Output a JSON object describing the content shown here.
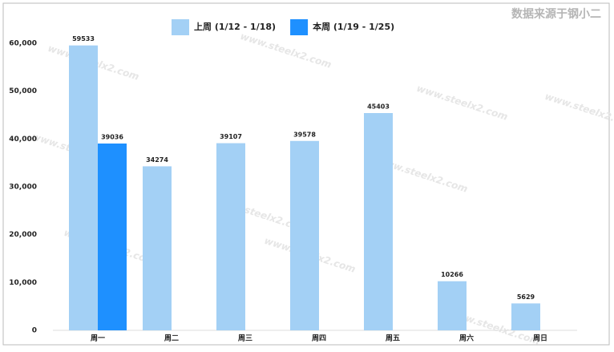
{
  "chart_data": {
    "type": "bar",
    "source": "数据来源于钢小二",
    "watermark": "www.steelx2.com",
    "categories": [
      "周一",
      "周二",
      "周三",
      "周四",
      "周五",
      "周六",
      "周日"
    ],
    "series": [
      {
        "name": "上周 (1/12 - 1/18)",
        "color": "#a3d0f5",
        "values": [
          59533,
          34274,
          39107,
          39578,
          45403,
          10266,
          5629
        ]
      },
      {
        "name": "本周 (1/19 - 1/25)",
        "color": "#1e90ff",
        "values": [
          39036,
          null,
          null,
          null,
          null,
          null,
          null
        ]
      }
    ],
    "ylim": [
      0,
      64000
    ],
    "yticks": [
      0,
      {
        "value": 10000,
        "label": "10,000"
      },
      {
        "value": 20000,
        "label": "20,000"
      },
      {
        "value": 30000,
        "label": "30,000"
      },
      {
        "value": 40000,
        "label": "40,000"
      },
      {
        "value": 50000,
        "label": "50,000"
      },
      {
        "value": 60000,
        "label": "60,000"
      }
    ]
  }
}
